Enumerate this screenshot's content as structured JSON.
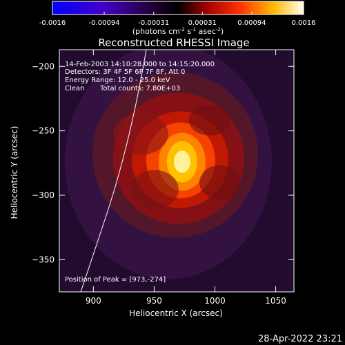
{
  "colorbar": {
    "tick_labels": [
      "-0.0016",
      "-0.00094",
      "-0.00031",
      "0.00031",
      "0.00094",
      "0.0016"
    ],
    "ticks": [
      -0.0016,
      -0.00094,
      -0.00031,
      0.00031,
      0.00094,
      0.0016
    ],
    "range": [
      -0.0016,
      0.0016
    ],
    "units": "(photons cm",
    "units_sup1": "-2",
    "units_mid": " s",
    "units_sup2": "-1",
    "units_end": " asec",
    "units_sup3": "-2",
    "units_close": ")"
  },
  "chart_data": {
    "type": "heatmap",
    "title": "Reconstructed RHESSI Image",
    "xlabel": "Heliocentric X (arcsec)",
    "ylabel": "Heliocentric Y (arcsec)",
    "xlim": [
      872,
      1065
    ],
    "ylim": [
      -375,
      -187
    ],
    "x_ticks": [
      900,
      950,
      1000,
      1050
    ],
    "y_ticks": [
      -200,
      -250,
      -300,
      -350
    ],
    "peak": [
      973,
      -274
    ],
    "annotations": {
      "time": "14-Feb-2003 14:10:28.000 to 14:15:20.000",
      "detectors": "Detectors: 3F 4F 5F 6F 7F 8F, Att 0",
      "energy": "Energy Range: 12.0 - 25.0 keV",
      "method": "Clean",
      "counts": "Total counts: 7.80E+03",
      "peak_label": "Position of Peak = [973,-274]"
    }
  },
  "footer": {
    "timestamp": "28-Apr-2022 23:21"
  }
}
